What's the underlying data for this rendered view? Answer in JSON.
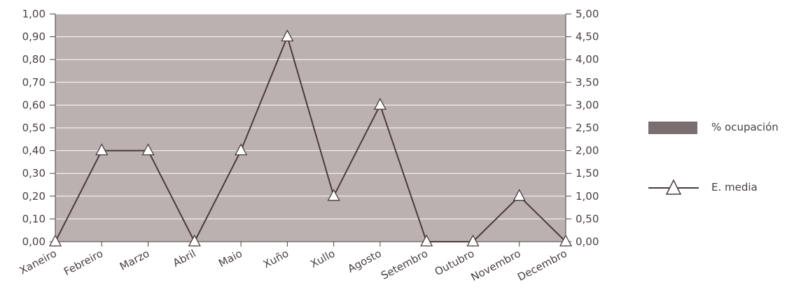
{
  "chart_data": {
    "type": "line",
    "categories": [
      "Xaneiro",
      "Febreiro",
      "Marzo",
      "Abril",
      "Maio",
      "Xuño",
      "Xullo",
      "Agosto",
      "Setembro",
      "Outubro",
      "Novembro",
      "Decembro"
    ],
    "series": [
      {
        "name": "% ocupación",
        "kind": "bar",
        "axis": "left",
        "values": [
          0,
          0,
          0,
          0,
          0,
          0,
          0,
          0,
          0,
          0,
          0,
          0
        ],
        "color": "#7a6e6e"
      },
      {
        "name": "E. media",
        "kind": "line",
        "axis": "right",
        "marker": "triangle",
        "values": [
          0,
          2,
          2,
          0,
          2,
          4.5,
          1,
          3,
          0,
          0,
          1,
          0
        ],
        "color": "#4a3c3c"
      }
    ],
    "left_ticks": [
      "0,00",
      "0,10",
      "0,20",
      "0,30",
      "0,40",
      "0,50",
      "0,60",
      "0,70",
      "0,80",
      "0,90",
      "1,00"
    ],
    "right_ticks": [
      "0,00",
      "0,50",
      "1,00",
      "1,50",
      "2,00",
      "2,50",
      "3,00",
      "3,50",
      "4,00",
      "4,50",
      "5,00"
    ],
    "ylim_left": [
      0,
      1
    ],
    "ylim_right": [
      0,
      5
    ],
    "plot_background": "#bbb1b1",
    "grid": true,
    "legend_position": "right"
  }
}
